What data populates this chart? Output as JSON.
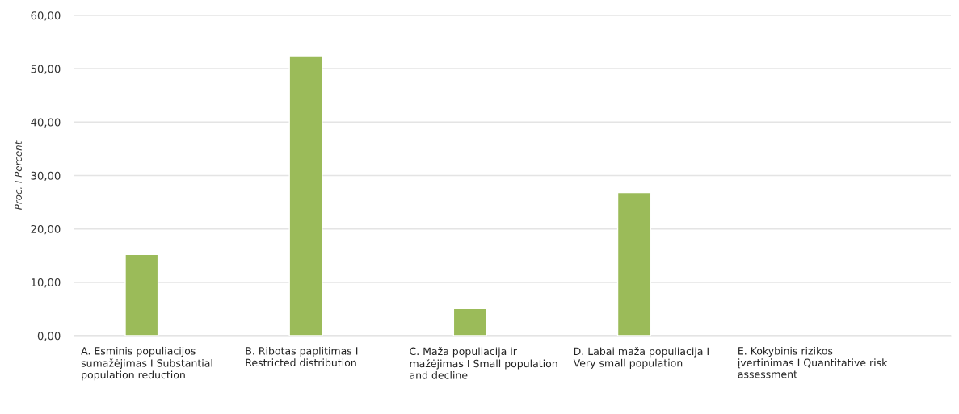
{
  "chart_data": {
    "type": "bar",
    "ylabel": "Proc. I Percent",
    "categories": [
      "A. Esminis populiacijos sumažėjimas I Substantial population reduction",
      "B. Ribotas paplitimas I Restricted distribution",
      "C. Maža populiacija ir mažėjimas I Small population and decline",
      "D. Labai maža populiacija I Very small population",
      "E. Kokybinis rizikos įvertinimas I Quantitative risk assessment"
    ],
    "values": [
      15.2,
      52.3,
      5.1,
      26.8,
      null
    ],
    "color": "#9bbb59",
    "ylim": [
      0,
      60
    ],
    "yticks": [
      {
        "value": 0,
        "label": "0,00"
      },
      {
        "value": 10,
        "label": "10,00"
      },
      {
        "value": 20,
        "label": "20,00"
      },
      {
        "value": 30,
        "label": "30,00"
      },
      {
        "value": 40,
        "label": "40,00"
      },
      {
        "value": 50,
        "label": "50,00"
      },
      {
        "value": 60,
        "label": "60,00"
      }
    ],
    "grid": "y",
    "legend": false
  }
}
